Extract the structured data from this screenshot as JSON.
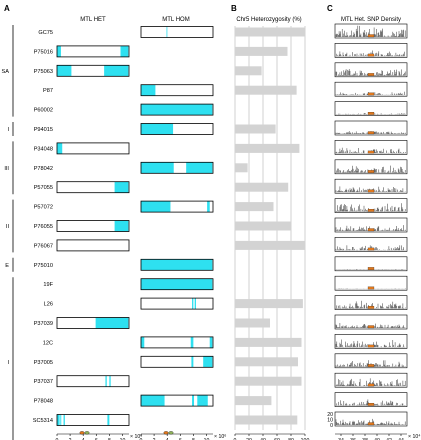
{
  "panels": {
    "a": "A",
    "b": "B",
    "c": "C"
  },
  "headers": {
    "het": "MTL HET",
    "hom": "MTL HOM",
    "b": "Chr5 Heterozygosity (%)",
    "c": "MTL Het. SNP Density"
  },
  "colors": {
    "cyan": "#2ee0f0",
    "bar": "#d3d3d3",
    "grid": "#b3b3b3",
    "spike": "#333333",
    "mtl_orange": "#e0781e",
    "mtl_green": "#8fb35a"
  },
  "x_axes": {
    "het": {
      "ticks": [
        "0",
        "2",
        "4",
        "6",
        "8",
        "10"
      ],
      "exp": "× 10⁶"
    },
    "hom": {
      "ticks": [
        "0",
        "2",
        "4",
        "6",
        "8",
        "10"
      ],
      "exp": "× 10⁶"
    },
    "b": {
      "ticks": [
        "0",
        "20",
        "40",
        "60",
        "80",
        "100"
      ]
    },
    "c": {
      "ticks": [
        "34",
        "36",
        "38",
        "40",
        "42",
        "44"
      ],
      "exp": "× 10⁴"
    }
  },
  "c_yaxis": {
    "ticks": [
      "20",
      "10",
      "0"
    ]
  },
  "clades": [
    {
      "label": "SA",
      "first": 0,
      "last": 4
    },
    {
      "label": "I",
      "first": 5,
      "last": 5
    },
    {
      "label": "III",
      "first": 6,
      "last": 8
    },
    {
      "label": "II",
      "first": 9,
      "last": 11
    },
    {
      "label": "E",
      "first": 12,
      "last": 12
    },
    {
      "label": "I",
      "first": 13,
      "last": 21
    }
  ],
  "chart_data": {
    "type": "table",
    "strains": [
      "GC75",
      "P75016",
      "P75063",
      "P87",
      "P60002",
      "P94015",
      "P34048",
      "P78042",
      "P57055",
      "P57072",
      "P76055",
      "P76067",
      "P75010",
      "19F",
      "L26",
      "P37039",
      "12C",
      "P37005",
      "P37037",
      "P78048",
      "SC5314"
    ],
    "mtl_het": [
      {
        "box": false,
        "segments": []
      },
      {
        "box": true,
        "segments": [
          [
            0,
            0.6
          ],
          [
            9.7,
            10.9
          ]
        ]
      },
      {
        "box": true,
        "segments": [
          [
            0,
            2.2
          ],
          [
            7.2,
            10.9
          ]
        ]
      },
      {
        "box": false,
        "segments": []
      },
      {
        "box": false,
        "segments": []
      },
      {
        "box": false,
        "segments": []
      },
      {
        "box": true,
        "segments": [
          [
            0,
            0.8
          ]
        ]
      },
      {
        "box": false,
        "segments": []
      },
      {
        "box": true,
        "segments": [
          [
            8.8,
            10.9
          ]
        ]
      },
      {
        "box": false,
        "segments": []
      },
      {
        "box": true,
        "segments": [
          [
            8.8,
            10.9
          ]
        ]
      },
      {
        "box": true,
        "segments": []
      },
      {
        "box": false,
        "segments": []
      },
      {
        "box": false,
        "segments": []
      },
      {
        "box": false,
        "segments": []
      },
      {
        "box": true,
        "segments": [
          [
            5.9,
            10.9
          ]
        ]
      },
      {
        "box": false,
        "segments": []
      },
      {
        "box": false,
        "segments": []
      },
      {
        "box": true,
        "segments": [
          [
            7.4,
            7.6
          ],
          [
            8.0,
            8.2
          ]
        ]
      },
      {
        "box": false,
        "segments": []
      },
      {
        "box": true,
        "segments": [
          [
            0,
            0.4
          ],
          [
            0.5,
            0.65
          ],
          [
            1.0,
            1.2
          ],
          [
            7.7,
            8.0
          ]
        ]
      }
    ],
    "mtl_hom": [
      {
        "box": true,
        "segments": [
          [
            3.9,
            4.0
          ]
        ]
      },
      {
        "box": false,
        "segments": []
      },
      {
        "box": false,
        "segments": []
      },
      {
        "box": true,
        "segments": [
          [
            0,
            2.2
          ]
        ]
      },
      {
        "box": true,
        "segments": [
          [
            0,
            10.9
          ]
        ]
      },
      {
        "box": true,
        "segments": [
          [
            0,
            4.9
          ]
        ]
      },
      {
        "box": false,
        "segments": []
      },
      {
        "box": true,
        "segments": [
          [
            0,
            5.0
          ],
          [
            6.9,
            10.9
          ]
        ]
      },
      {
        "box": false,
        "segments": []
      },
      {
        "box": true,
        "segments": [
          [
            0,
            4.5
          ],
          [
            10.1,
            10.5
          ]
        ]
      },
      {
        "box": false,
        "segments": []
      },
      {
        "box": false,
        "segments": []
      },
      {
        "box": true,
        "segments": [
          [
            0,
            10.9
          ]
        ]
      },
      {
        "box": true,
        "segments": [
          [
            0,
            10.9
          ]
        ]
      },
      {
        "box": true,
        "segments": [
          [
            7.8,
            8.0
          ],
          [
            8.2,
            8.4
          ]
        ]
      },
      {
        "box": false,
        "segments": []
      },
      {
        "box": true,
        "segments": [
          [
            0,
            0.5
          ],
          [
            7.6,
            8.0
          ],
          [
            10.5,
            10.9
          ]
        ]
      },
      {
        "box": true,
        "segments": [
          [
            7.7,
            8.0
          ],
          [
            9.5,
            10.9
          ]
        ]
      },
      {
        "box": false,
        "segments": []
      },
      {
        "box": true,
        "segments": [
          [
            0,
            3.6
          ],
          [
            7.8,
            8.1
          ],
          [
            8.6,
            10.2
          ]
        ]
      },
      {
        "box": false,
        "segments": []
      }
    ],
    "chr5_heterozygosity_pct": [
      100,
      75,
      38,
      88,
      0,
      58,
      92,
      18,
      76,
      55,
      80,
      100,
      0,
      0,
      97,
      50,
      95,
      90,
      95,
      52,
      89
    ],
    "het_snp_density_max": [
      14,
      8,
      10,
      4,
      2,
      4,
      8,
      10,
      8,
      12,
      8,
      6,
      1,
      1,
      10,
      6,
      10,
      8,
      10,
      8,
      8
    ],
    "axis_ranges": {
      "mtl_bp": [
        0,
        11000000
      ],
      "chr5_pct": [
        0,
        100
      ],
      "density_pos": [
        330000,
        450000
      ]
    }
  }
}
